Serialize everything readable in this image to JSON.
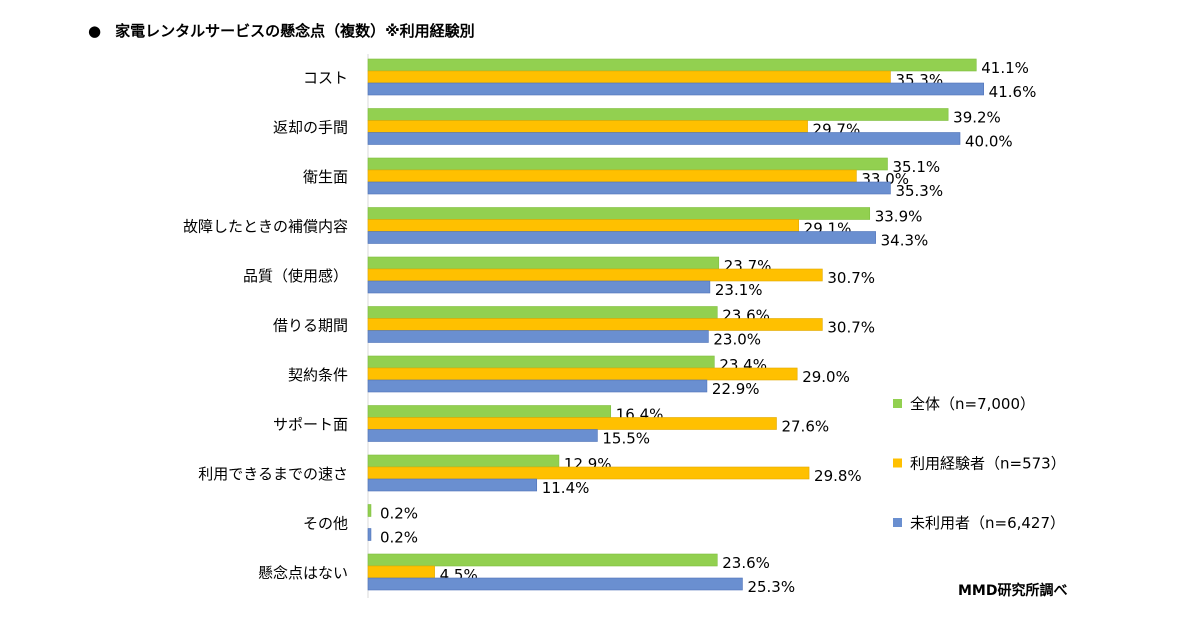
{
  "chart_data": {
    "type": "bar",
    "orientation": "horizontal",
    "title": "家電レンタルサービスの懸念点（複数）※利用経験別",
    "title_bullet": "●",
    "source": "MMD研究所調べ",
    "categories": [
      "コスト",
      "返却の手間",
      "衛生面",
      "故障したときの補償内容",
      "品質（使用感）",
      "借りる期間",
      "契約条件",
      "サポート面",
      "利用できるまでの速さ",
      "その他",
      "懸念点はない"
    ],
    "series": [
      {
        "name": "全体（n=7,000）",
        "color": "#92D050",
        "values": [
          41.1,
          39.2,
          35.1,
          33.9,
          23.7,
          23.6,
          23.4,
          16.4,
          12.9,
          0.2,
          23.6
        ],
        "labels": [
          "41.1%",
          "39.2%",
          "35.1%",
          "33.9%",
          "23.7%",
          "23.6%",
          "23.4%",
          "16.4%",
          "12.9%",
          "0.2%",
          "23.6%"
        ]
      },
      {
        "name": "利用経験者（n=573）",
        "color": "#FFC000",
        "values": [
          35.3,
          29.7,
          33.0,
          29.1,
          30.7,
          30.7,
          29.0,
          27.6,
          29.8,
          0,
          4.5
        ],
        "labels": [
          "35.3%",
          "29.7%",
          "33.0%",
          "29.1%",
          "30.7%",
          "30.7%",
          "29.0%",
          "27.6%",
          "29.8%",
          null,
          "4.5%"
        ]
      },
      {
        "name": "未利用者（n=6,427）",
        "color": "#6A8FD0",
        "values": [
          41.6,
          40.0,
          35.3,
          34.3,
          23.1,
          23.0,
          22.9,
          15.5,
          11.4,
          0.2,
          25.3
        ],
        "labels": [
          "41.6%",
          "40.0%",
          "35.3%",
          "34.3%",
          "23.1%",
          "23.0%",
          "22.9%",
          "15.5%",
          "11.4%",
          "0.2%",
          "25.3%"
        ]
      }
    ],
    "xlim": [
      0,
      45
    ],
    "grid": false,
    "legend": "right"
  }
}
